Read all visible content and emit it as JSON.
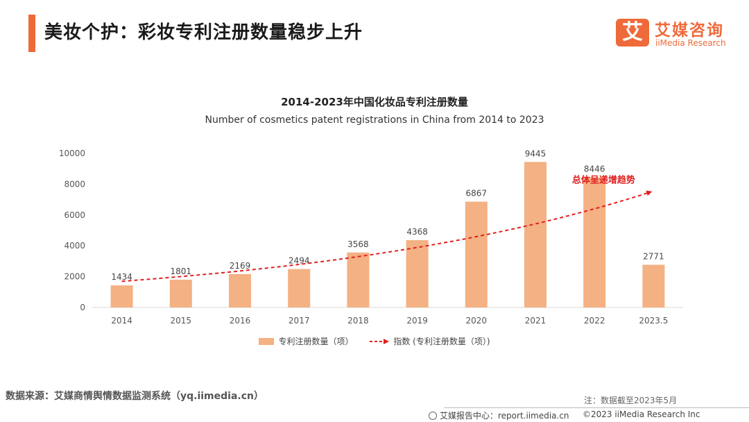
{
  "header": {
    "title": "美妆个护：彩妆专利注册数量稳步上升",
    "logo_mark": "艾",
    "logo_cn": "艾媒咨询",
    "logo_en": "iiMedia Research"
  },
  "colors": {
    "accent": "#ef6a3a",
    "bar": "#f4b183",
    "trend": "#e02020"
  },
  "chart_data": {
    "type": "bar",
    "title": "2014-2023年中国化妆品专利注册数量",
    "subtitle": "Number of cosmetics patent registrations in China from 2014 to 2023",
    "categories": [
      "2014",
      "2015",
      "2016",
      "2017",
      "2018",
      "2019",
      "2020",
      "2021",
      "2022",
      "2023.5"
    ],
    "series": [
      {
        "name": "专利注册数量（项）",
        "type": "bar",
        "values": [
          1434,
          1801,
          2169,
          2494,
          3568,
          4368,
          6867,
          9445,
          8446,
          2771
        ]
      }
    ],
    "trend": {
      "name": "指数 (专利注册数量（项）)",
      "style": "dashed exponential with arrow",
      "start_value": 1700,
      "end_value": 7500
    },
    "annotation": "总体呈递增趋势",
    "ylim": [
      0,
      10000
    ],
    "yticks": [
      0,
      2000,
      4000,
      6000,
      8000,
      10000
    ],
    "xlabel": "",
    "ylabel": "",
    "legend_position": "bottom"
  },
  "footer": {
    "source": "数据来源：艾媒商情舆情数据监测系统（yq.iimedia.cn）",
    "note": "注：数据截至2023年5月",
    "report": "艾媒报告中心：report.iimedia.cn",
    "copyright": "©2023  iiMedia Research  Inc"
  }
}
